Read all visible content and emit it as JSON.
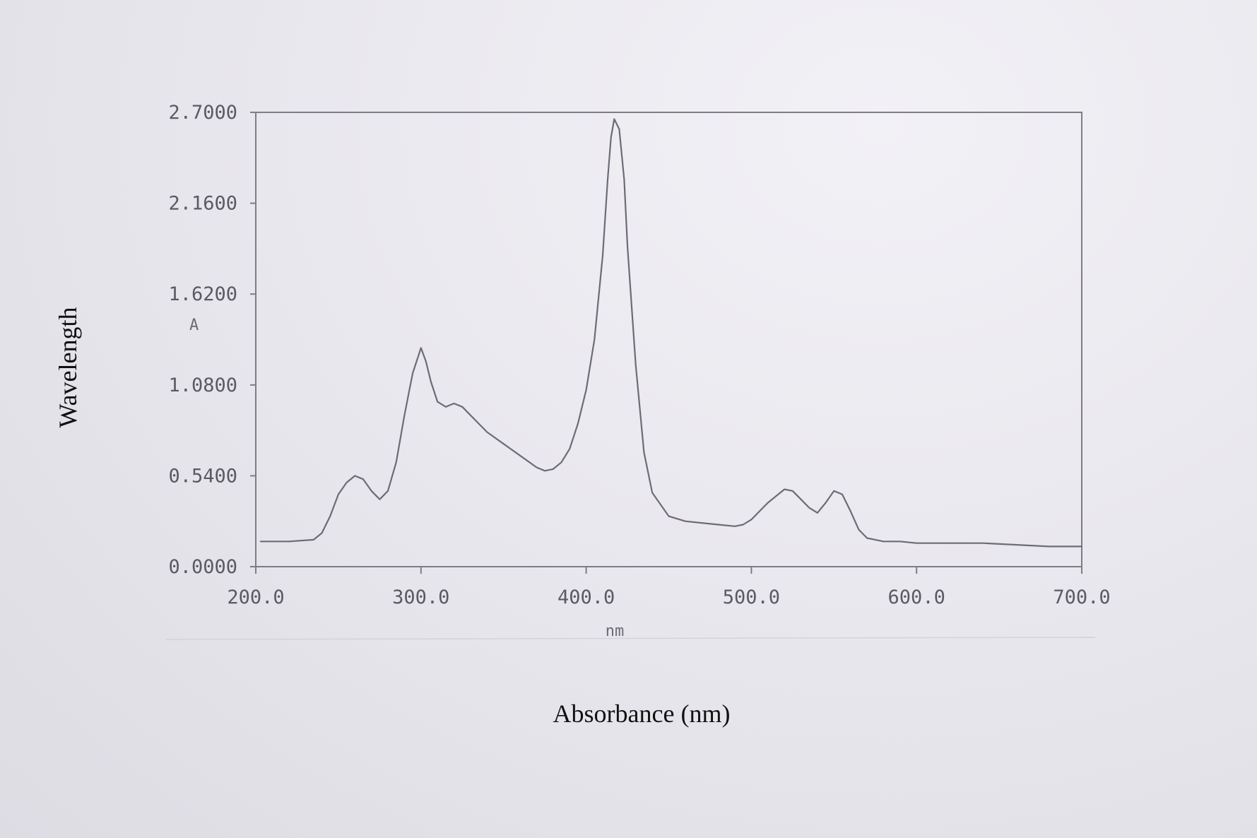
{
  "chart_data": {
    "type": "line",
    "title": "",
    "xlabel": "Absorbance (nm)",
    "ylabel": "Wavelength",
    "x_unit": "nm",
    "y_unit": "A",
    "xlim": [
      200,
      700
    ],
    "ylim": [
      0,
      2.7
    ],
    "x_ticks": [
      {
        "value": 200,
        "label": "200.0"
      },
      {
        "value": 300,
        "label": "300.0"
      },
      {
        "value": 400,
        "label": "400.0"
      },
      {
        "value": 500,
        "label": "500.0"
      },
      {
        "value": 600,
        "label": "600.0"
      },
      {
        "value": 700,
        "label": "700.0"
      }
    ],
    "y_ticks": [
      {
        "value": 0,
        "label": "0.0000"
      },
      {
        "value": 0.54,
        "label": "0.5400"
      },
      {
        "value": 1.08,
        "label": "1.0800"
      },
      {
        "value": 1.62,
        "label": "1.6200"
      },
      {
        "value": 2.16,
        "label": "2.1600"
      },
      {
        "value": 2.7,
        "label": "2.7000"
      }
    ],
    "grid": false,
    "line_color": "#6c6c76",
    "series": [
      {
        "x": [
          203,
          220,
          235,
          240,
          245,
          250,
          255,
          260,
          265,
          270,
          275,
          280,
          285,
          290,
          293,
          295,
          300,
          303,
          306,
          310,
          315,
          320,
          325,
          330,
          335,
          340,
          350,
          360,
          370,
          375,
          380,
          385,
          390,
          395,
          400,
          405,
          410,
          413,
          415,
          417,
          420,
          423,
          425,
          430,
          435,
          440,
          450,
          460,
          470,
          480,
          490,
          495,
          500,
          505,
          510,
          515,
          520,
          525,
          530,
          535,
          540,
          545,
          550,
          555,
          560,
          565,
          570,
          575,
          580,
          590,
          600,
          620,
          640,
          660,
          680,
          700
        ],
        "y": [
          0.15,
          0.15,
          0.16,
          0.2,
          0.3,
          0.43,
          0.5,
          0.54,
          0.52,
          0.45,
          0.4,
          0.45,
          0.62,
          0.9,
          1.05,
          1.15,
          1.3,
          1.22,
          1.1,
          0.98,
          0.95,
          0.97,
          0.95,
          0.9,
          0.85,
          0.8,
          0.73,
          0.66,
          0.59,
          0.57,
          0.58,
          0.62,
          0.7,
          0.85,
          1.05,
          1.35,
          1.85,
          2.3,
          2.55,
          2.66,
          2.6,
          2.3,
          1.9,
          1.2,
          0.68,
          0.44,
          0.3,
          0.27,
          0.26,
          0.25,
          0.24,
          0.25,
          0.28,
          0.33,
          0.38,
          0.42,
          0.46,
          0.45,
          0.4,
          0.35,
          0.32,
          0.38,
          0.45,
          0.43,
          0.33,
          0.22,
          0.17,
          0.16,
          0.15,
          0.15,
          0.14,
          0.14,
          0.14,
          0.13,
          0.12,
          0.12
        ]
      }
    ]
  }
}
